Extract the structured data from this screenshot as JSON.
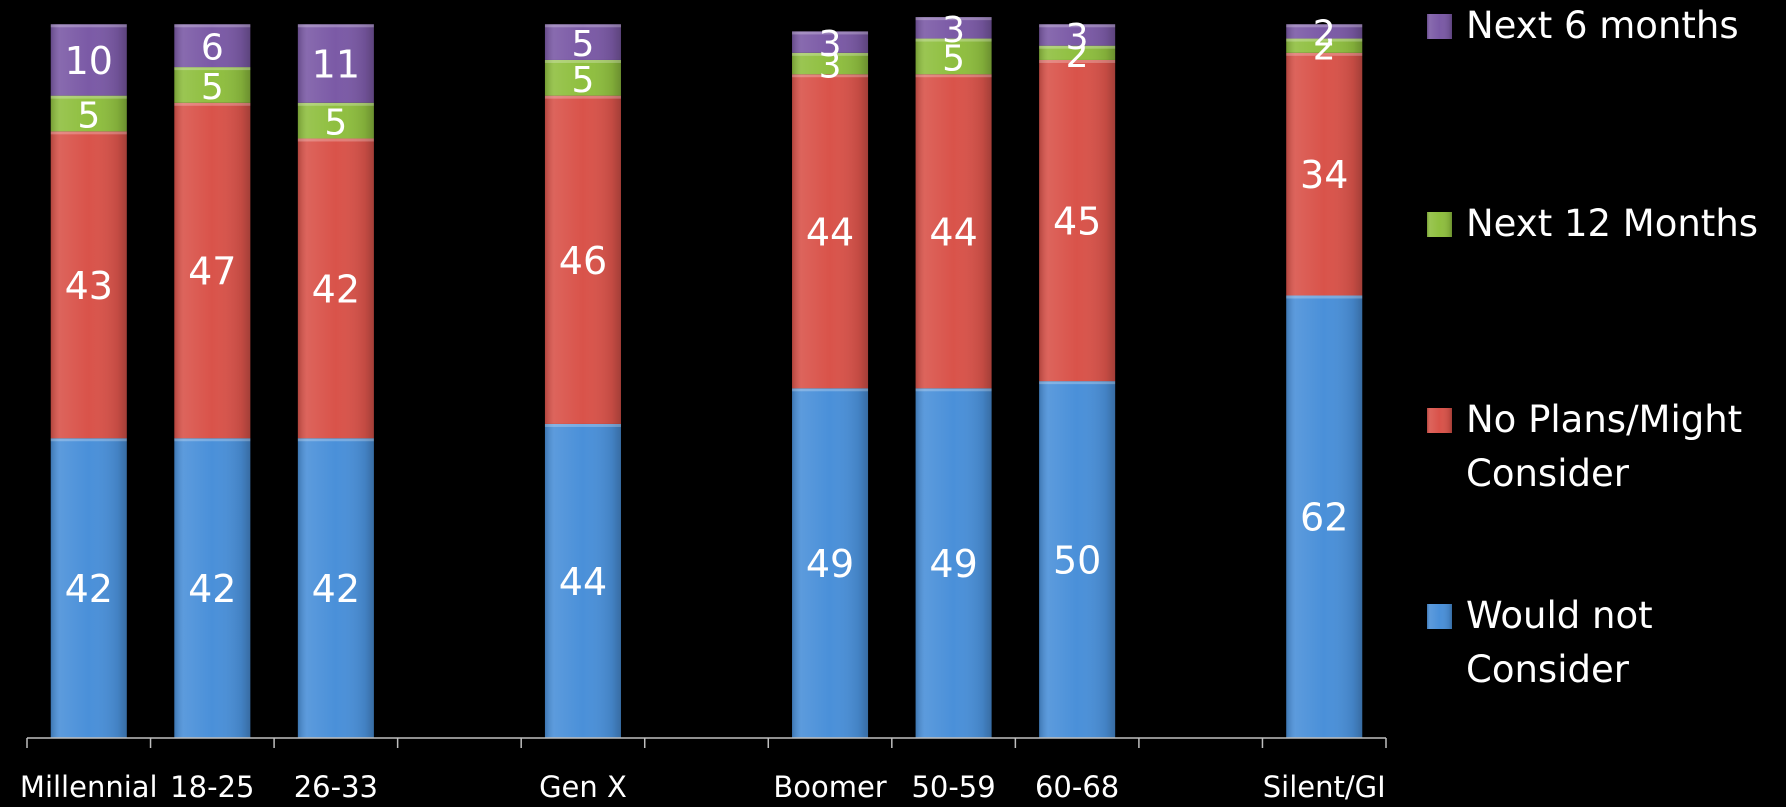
{
  "chart_data": {
    "type": "bar",
    "stacked": true,
    "categories": [
      "Millennial",
      "18-25",
      "26-33",
      "",
      "Gen X",
      "",
      "Boomer",
      "50-59",
      "60-68",
      "",
      "Silent/GI"
    ],
    "series": [
      {
        "name": "Would not Consider",
        "color": "#4a90d9",
        "values": [
          42,
          42,
          42,
          null,
          44,
          null,
          49,
          49,
          50,
          null,
          62
        ]
      },
      {
        "name": "No Plans/Might Consider",
        "color": "#d9534a",
        "values": [
          43,
          47,
          42,
          null,
          46,
          null,
          44,
          44,
          45,
          null,
          34
        ]
      },
      {
        "name": "Next 12 Months",
        "color": "#8fbf3f",
        "values": [
          5,
          5,
          5,
          null,
          5,
          null,
          3,
          5,
          2,
          null,
          2
        ]
      },
      {
        "name": "Next 6 months",
        "color": "#7b5aa6",
        "values": [
          10,
          6,
          11,
          null,
          5,
          null,
          3,
          3,
          3,
          null,
          2
        ]
      }
    ],
    "ylim": [
      0,
      100
    ],
    "grid": false,
    "legend": "right",
    "legend_order": [
      "Next 6 months",
      "Next 12 Months",
      "No Plans/Might Consider",
      "Would not Consider"
    ]
  }
}
